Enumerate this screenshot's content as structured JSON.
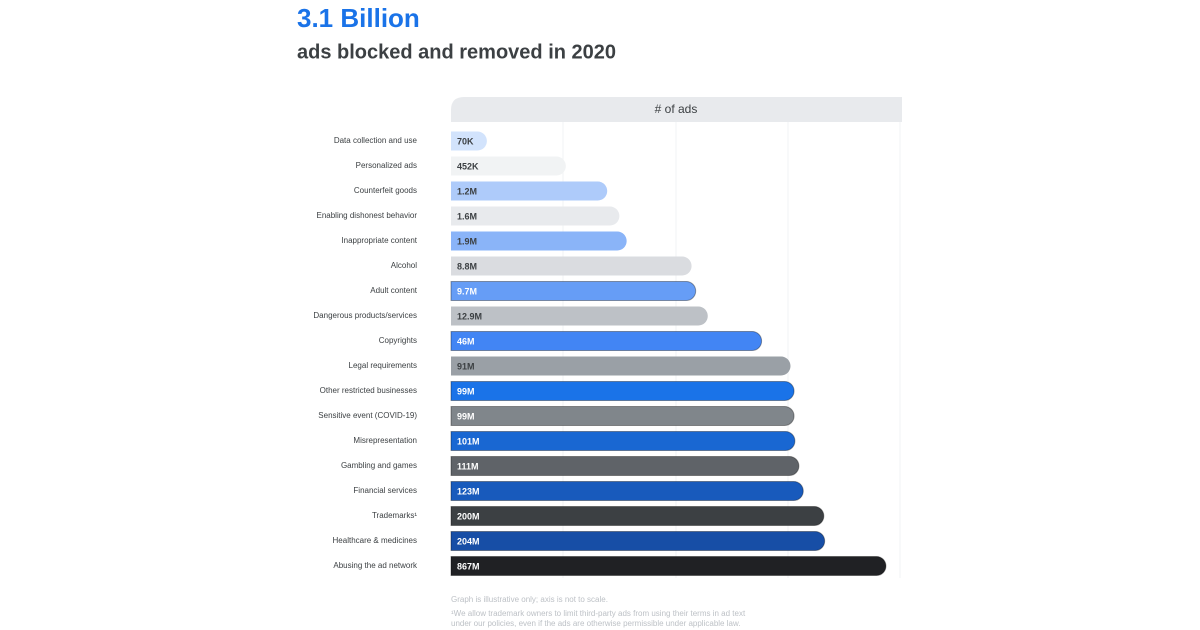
{
  "chart_data": {
    "type": "bar",
    "orientation": "horizontal",
    "title": "3.1 Billion",
    "subtitle": "ads blocked and removed in 2020",
    "axis_header": "# of ads",
    "categories": [
      "Data collection and use",
      "Personalized ads",
      "Counterfeit goods",
      "Enabling dishonest behavior",
      "Inappropriate content",
      "Alcohol",
      "Adult content",
      "Dangerous products/services",
      "Copyrights",
      "Legal requirements",
      "Other restricted businesses",
      "Sensitive event (COVID-19)",
      "Misrepresentation",
      "Gambling and games",
      "Financial services",
      "Trademarks¹",
      "Healthcare & medicines",
      "Abusing the ad network"
    ],
    "values": [
      70000,
      452000,
      1200000,
      1600000,
      1900000,
      8800000,
      9700000,
      12900000,
      46000000,
      91000000,
      99000000,
      99000000,
      101000000,
      111000000,
      123000000,
      200000000,
      204000000,
      867000000
    ],
    "value_labels": [
      "70K",
      "452K",
      "1.2M",
      "1.6M",
      "1.9M",
      "8.8M",
      "9.7M",
      "12.9M",
      "46M",
      "91M",
      "99M",
      "99M",
      "101M",
      "111M",
      "123M",
      "200M",
      "204M",
      "867M"
    ],
    "colors": [
      "#d2e3fc",
      "#f1f3f4",
      "#aecbfa",
      "#e8eaed",
      "#8ab4f8",
      "#dadce0",
      "#669df6",
      "#bdc1c6",
      "#4285f4",
      "#9aa0a6",
      "#1a73e8",
      "#80868b",
      "#1967d2",
      "#5f6368",
      "#185abc",
      "#3c4043",
      "#174ea6",
      "#202124"
    ],
    "log_scale": true,
    "xlim": [
      30000,
      1000000000
    ],
    "notes": [
      "Graph is illustrative only; axis is not to scale.",
      "¹We allow trademark owners to limit third-party ads from using their terms in ad text",
      "under our policies, even if the ads are otherwise permissible under applicable law."
    ]
  }
}
